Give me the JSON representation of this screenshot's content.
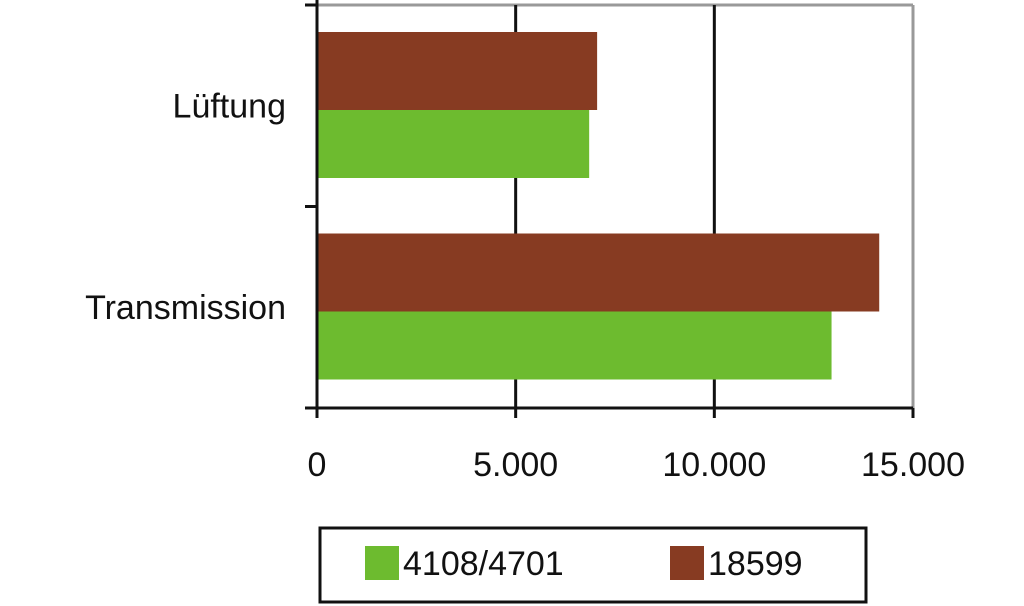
{
  "chart_data": {
    "type": "barh",
    "categories": [
      "Lüftung",
      "Transmission"
    ],
    "series": [
      {
        "name": "4108/4701",
        "color": "#6dbb2f",
        "values": [
          6850,
          12950
        ]
      },
      {
        "name": "18599",
        "color": "#873b22",
        "values": [
          7050,
          14150
        ]
      }
    ],
    "xlim": [
      0,
      15000
    ],
    "xticks": [
      0,
      {
        "value": 5000,
        "label": "5.000"
      },
      {
        "value": 10000,
        "label": "10.000"
      },
      {
        "value": 15000,
        "label": "15.000"
      }
    ],
    "grid": true,
    "legend": "bottom"
  }
}
